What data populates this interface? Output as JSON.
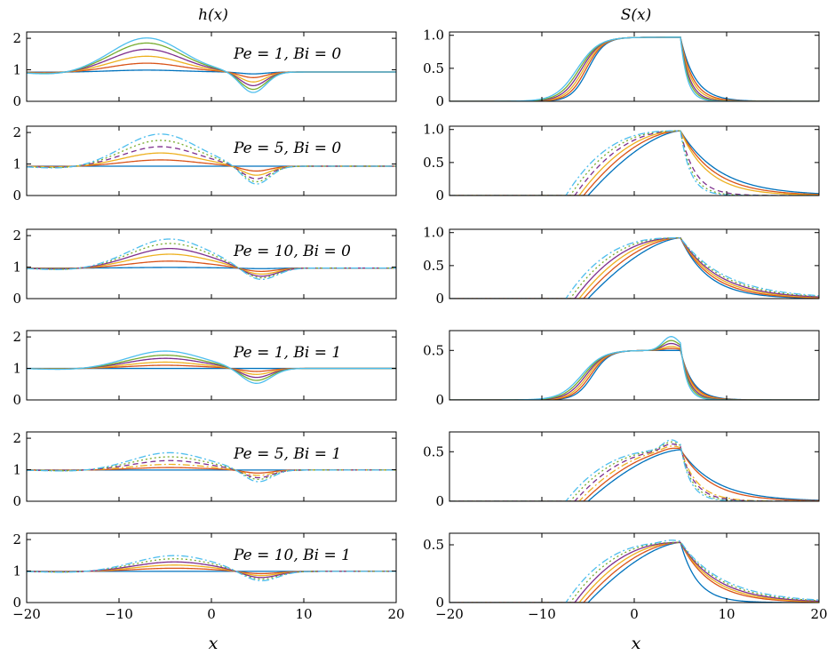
{
  "figure": {
    "left_title": "h(x)",
    "right_title": "S(x)",
    "xlabel": "x"
  },
  "series_colors": [
    "#0072bd",
    "#d95319",
    "#edb120",
    "#7e2f8e",
    "#77ac30",
    "#4dbeee"
  ],
  "chart_data": [
    {
      "type": "line",
      "column": "h(x)",
      "annotation": "Pe = 1, Bi = 0",
      "xlim": [
        -20,
        20
      ],
      "ylim": [
        0,
        2.2
      ],
      "xticks": [
        "-20",
        "-10",
        "0",
        "10",
        "20"
      ],
      "yticks": [
        "0",
        "1",
        "2"
      ],
      "x_range": [
        -20,
        20
      ],
      "curves": {
        "kind": "h",
        "baseline": 0.93,
        "hump_center": -7,
        "hump_width": 3.8,
        "dip_center": 4.5,
        "dip_width": 1.4,
        "hump_amps": [
          0.06,
          0.28,
          0.5,
          0.72,
          0.92,
          1.08
        ],
        "dip_amps": [
          0.06,
          0.18,
          0.32,
          0.44,
          0.56,
          0.66
        ],
        "dashed_from": 99
      }
    },
    {
      "type": "line",
      "column": "S(x)",
      "annotation": "",
      "xlim": [
        -20,
        20
      ],
      "ylim": [
        0,
        1.05
      ],
      "xticks": [
        "-20",
        "-10",
        "0",
        "10",
        "20"
      ],
      "yticks": [
        "0",
        "0.5",
        "1.0"
      ],
      "x_range": [
        -20,
        20
      ],
      "curves": {
        "kind": "S",
        "rise_start": -8,
        "rise_end": -2,
        "peak": 0.97,
        "fall_at": 5,
        "tail_rates": [
          2.6,
          2.2,
          1.9,
          1.6,
          1.4,
          1.2
        ],
        "shape": "sigmoid",
        "dashed_from": 99,
        "overshoot": [
          0,
          0,
          0,
          0,
          0,
          0
        ]
      }
    },
    {
      "type": "line",
      "column": "h(x)",
      "annotation": "Pe = 5, Bi = 0",
      "xlim": [
        -20,
        20
      ],
      "ylim": [
        0,
        2.2
      ],
      "xticks": [
        "-20",
        "-10",
        "0",
        "10",
        "20"
      ],
      "yticks": [
        "0",
        "1",
        "2"
      ],
      "x_range": [
        -20,
        20
      ],
      "curves": {
        "kind": "h",
        "baseline": 0.93,
        "hump_center": -5.5,
        "hump_width": 4.0,
        "dip_center": 4.8,
        "dip_width": 1.5,
        "hump_amps": [
          0.0,
          0.2,
          0.42,
          0.62,
          0.82,
          1.02
        ],
        "dip_amps": [
          0.0,
          0.16,
          0.3,
          0.42,
          0.52,
          0.6
        ],
        "dashed_from": 3
      }
    },
    {
      "type": "line",
      "column": "S(x)",
      "annotation": "",
      "xlim": [
        -20,
        20
      ],
      "ylim": [
        0,
        1.05
      ],
      "xticks": [
        "-20",
        "-10",
        "0",
        "10",
        "20"
      ],
      "yticks": [
        "0",
        "0.5",
        "1.0"
      ],
      "x_range": [
        -20,
        20
      ],
      "curves": {
        "kind": "S",
        "rise_start": -5,
        "rise_end": 4,
        "peak": 0.98,
        "fall_at": 5,
        "tail_rates": [
          4.5,
          3.8,
          3.2,
          2.6,
          2.1,
          1.8
        ],
        "shape": "concave",
        "dashed_from": 3,
        "overshoot": [
          0,
          0,
          0,
          0,
          0,
          0
        ]
      }
    },
    {
      "type": "line",
      "column": "h(x)",
      "annotation": "Pe = 10, Bi = 0",
      "xlim": [
        -20,
        20
      ],
      "ylim": [
        0,
        2.2
      ],
      "xticks": [
        "-20",
        "-10",
        "0",
        "10",
        "20"
      ],
      "yticks": [
        "0",
        "1",
        "2"
      ],
      "x_range": [
        -20,
        20
      ],
      "curves": {
        "kind": "h",
        "baseline": 0.97,
        "hump_center": -4.5,
        "hump_width": 4.2,
        "dip_center": 5.2,
        "dip_width": 1.8,
        "hump_amps": [
          0.02,
          0.22,
          0.44,
          0.62,
          0.78,
          0.92
        ],
        "dip_amps": [
          0.02,
          0.12,
          0.22,
          0.3,
          0.36,
          0.42
        ],
        "dashed_from": 4
      }
    },
    {
      "type": "line",
      "column": "S(x)",
      "annotation": "",
      "xlim": [
        -20,
        20
      ],
      "ylim": [
        0,
        1.05
      ],
      "xticks": [
        "-20",
        "-10",
        "0",
        "10",
        "20"
      ],
      "yticks": [
        "0",
        "0.5",
        "1.0"
      ],
      "x_range": [
        -20,
        20
      ],
      "curves": {
        "kind": "S",
        "rise_start": -5,
        "rise_end": 5,
        "peak": 0.92,
        "fall_at": 5,
        "tail_rates": [
          3.2,
          3.6,
          4.0,
          4.4,
          4.8,
          5.2
        ],
        "shape": "concave",
        "dashed_from": 4,
        "overshoot": [
          0,
          0,
          0,
          0,
          0,
          0
        ]
      }
    },
    {
      "type": "line",
      "column": "h(x)",
      "annotation": "Pe = 1, Bi = 1",
      "xlim": [
        -20,
        20
      ],
      "ylim": [
        0,
        2.2
      ],
      "xticks": [
        "-20",
        "-10",
        "0",
        "10",
        "20"
      ],
      "yticks": [
        "0",
        "1",
        "2"
      ],
      "x_range": [
        -20,
        20
      ],
      "curves": {
        "kind": "h",
        "baseline": 1.0,
        "hump_center": -5,
        "hump_width": 4.0,
        "dip_center": 4.8,
        "dip_width": 1.6,
        "hump_amps": [
          0.0,
          0.1,
          0.2,
          0.32,
          0.42,
          0.55
        ],
        "dip_amps": [
          0.0,
          0.1,
          0.2,
          0.3,
          0.4,
          0.5
        ],
        "dashed_from": 99
      }
    },
    {
      "type": "line",
      "column": "S(x)",
      "annotation": "",
      "xlim": [
        -20,
        20
      ],
      "ylim": [
        0,
        0.7
      ],
      "xticks": [
        "-20",
        "-10",
        "0",
        "10",
        "20"
      ],
      "yticks": [
        "0",
        "0.5"
      ],
      "x_range": [
        -20,
        20
      ],
      "curves": {
        "kind": "S",
        "rise_start": -7,
        "rise_end": -2,
        "peak": 0.5,
        "fall_at": 5,
        "tail_rates": [
          2.2,
          2.0,
          1.8,
          1.6,
          1.4,
          1.2
        ],
        "shape": "sigmoid",
        "dashed_from": 99,
        "overshoot": [
          0.0,
          0.02,
          0.04,
          0.07,
          0.1,
          0.14
        ]
      }
    },
    {
      "type": "line",
      "column": "h(x)",
      "annotation": "Pe = 5, Bi = 1",
      "xlim": [
        -20,
        20
      ],
      "ylim": [
        0,
        2.2
      ],
      "xticks": [
        "-20",
        "-10",
        "0",
        "10",
        "20"
      ],
      "yticks": [
        "0",
        "1",
        "2"
      ],
      "x_range": [
        -20,
        20
      ],
      "curves": {
        "kind": "h",
        "baseline": 0.99,
        "hump_center": -4.5,
        "hump_width": 4.0,
        "dip_center": 5.0,
        "dip_width": 1.5,
        "hump_amps": [
          0.0,
          0.08,
          0.18,
          0.3,
          0.42,
          0.55
        ],
        "dip_amps": [
          0.0,
          0.1,
          0.18,
          0.26,
          0.32,
          0.4
        ],
        "dashed_from": 2
      }
    },
    {
      "type": "line",
      "column": "S(x)",
      "annotation": "",
      "xlim": [
        -20,
        20
      ],
      "ylim": [
        0,
        0.7
      ],
      "xticks": [
        "-20",
        "-10",
        "0",
        "10",
        "20"
      ],
      "yticks": [
        "0",
        "0.5"
      ],
      "x_range": [
        -20,
        20
      ],
      "curves": {
        "kind": "S",
        "rise_start": -5,
        "rise_end": 4,
        "peak": 0.52,
        "fall_at": 5,
        "tail_rates": [
          4.0,
          3.4,
          3.0,
          2.6,
          2.2,
          1.9
        ],
        "shape": "concave",
        "dashed_from": 2,
        "overshoot": [
          0.0,
          0.02,
          0.04,
          0.06,
          0.08,
          0.1
        ]
      }
    },
    {
      "type": "line",
      "column": "h(x)",
      "annotation": "Pe = 10, Bi = 1",
      "xlim": [
        -20,
        20
      ],
      "ylim": [
        0,
        2.2
      ],
      "xticks": [
        "-20",
        "-10",
        "0",
        "10",
        "20"
      ],
      "yticks": [
        "0",
        "1",
        "2"
      ],
      "x_range": [
        -20,
        20
      ],
      "curves": {
        "kind": "h",
        "baseline": 0.99,
        "hump_center": -4,
        "hump_width": 4.2,
        "dip_center": 5.2,
        "dip_width": 1.9,
        "hump_amps": [
          0.0,
          0.1,
          0.2,
          0.3,
          0.4,
          0.5
        ],
        "dip_amps": [
          0.0,
          0.08,
          0.15,
          0.22,
          0.28,
          0.34
        ],
        "dashed_from": 4
      }
    },
    {
      "type": "line",
      "column": "S(x)",
      "annotation": "",
      "xlim": [
        -20,
        20
      ],
      "ylim": [
        0,
        0.6
      ],
      "xticks": [
        "-20",
        "-10",
        "0",
        "10",
        "20"
      ],
      "yticks": [
        "0",
        "0.5"
      ],
      "x_range": [
        -20,
        20
      ],
      "curves": {
        "kind": "S",
        "rise_start": -5,
        "rise_end": 5,
        "peak": 0.52,
        "fall_at": 5,
        "tail_rates": [
          3.0,
          3.4,
          3.8,
          4.2,
          4.6,
          5.0
        ],
        "shape": "concave",
        "dashed_from": 4,
        "overshoot": [
          0,
          0,
          0,
          0,
          0,
          0.02
        ]
      }
    }
  ]
}
